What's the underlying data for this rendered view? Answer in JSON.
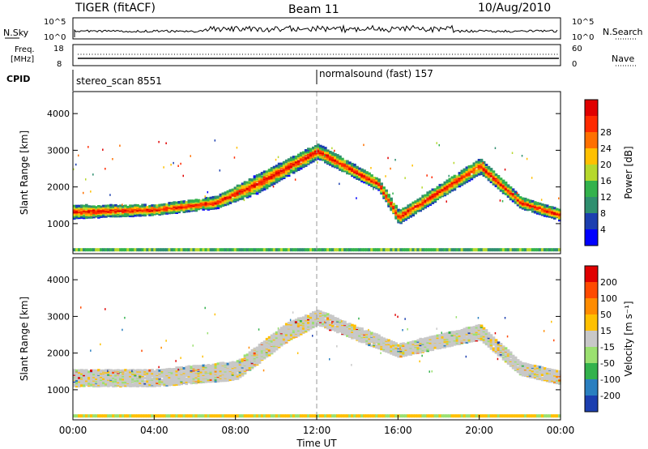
{
  "header": {
    "title": "TIGER (fitACF)",
    "beam": "Beam 11",
    "date": "10/Aug/2010"
  },
  "noise_panel": {
    "left_label": "N.Sky",
    "right_label": "N.Search",
    "left_ticks": [
      "10^5",
      "10^0"
    ],
    "right_ticks": [
      "10^5",
      "10^0"
    ]
  },
  "freq_panel": {
    "left_label_1": "Freq.",
    "left_label_2": "[MHz]",
    "left_ticks": [
      "18",
      "8"
    ],
    "right_label": "Nave",
    "right_ticks": [
      "60",
      "0"
    ]
  },
  "cpid": {
    "label": "CPID",
    "segments": [
      {
        "text": "stereo_scan 8551",
        "start_hour": 0
      },
      {
        "text": "normalsound (fast) 157",
        "start_hour": 12
      }
    ]
  },
  "chart_data": [
    {
      "type": "heatmap",
      "name": "power",
      "ylabel": "Slant Range [km]",
      "y_ticks": [
        1000,
        2000,
        3000,
        4000
      ],
      "ylim": [
        180,
        4600
      ],
      "xlim": [
        0,
        24
      ],
      "colorbar": {
        "label": "Power [dB]",
        "ticks": [
          "4",
          "8",
          "12",
          "16",
          "20",
          "24",
          "28"
        ],
        "colors": [
          "#0000ff",
          "#1c3fb0",
          "#2f8f6f",
          "#33b24c",
          "#b6d82c",
          "#ffc000",
          "#ff7000",
          "#ff2a00",
          "#e00000"
        ]
      },
      "bands": [
        {
          "hour": 0,
          "center_km": 1350,
          "width_km": 350
        },
        {
          "hour": 4,
          "center_km": 1400,
          "width_km": 280
        },
        {
          "hour": 7,
          "center_km": 1600,
          "width_km": 320
        },
        {
          "hour": 9,
          "center_km": 2100,
          "width_km": 500
        },
        {
          "hour": 12,
          "center_km": 3000,
          "width_km": 400
        },
        {
          "hour": 15,
          "center_km": 2100,
          "width_km": 300
        },
        {
          "hour": 16,
          "center_km": 1200,
          "width_km": 350
        },
        {
          "hour": 20,
          "center_km": 2600,
          "width_km": 400
        },
        {
          "hour": 22,
          "center_km": 1600,
          "width_km": 300
        },
        {
          "hour": 24,
          "center_km": 1250,
          "width_km": 300
        }
      ]
    },
    {
      "type": "heatmap",
      "name": "velocity",
      "ylabel": "Slant Range [km]",
      "y_ticks": [
        1000,
        2000,
        3000,
        4000
      ],
      "ylim": [
        180,
        4600
      ],
      "xlim": [
        0,
        24
      ],
      "xlabel": "Time UT",
      "x_ticks": [
        "00:00",
        "04:00",
        "08:00",
        "12:00",
        "16:00",
        "20:00",
        "00:00"
      ],
      "colorbar": {
        "label": "Velocity [m s⁻¹]",
        "ticks": [
          "200",
          "100",
          "50",
          "15",
          "-15",
          "-50",
          "-100",
          "-200"
        ],
        "colors": [
          "#1c3fb0",
          "#2a7fc0",
          "#33b24c",
          "#9be070",
          "#c8c8c8",
          "#ffc000",
          "#ff8c00",
          "#ff4a00",
          "#e00000"
        ]
      },
      "bands": [
        {
          "hour": 0,
          "center_km": 1350,
          "width_km": 450
        },
        {
          "hour": 4,
          "center_km": 1350,
          "width_km": 450
        },
        {
          "hour": 8,
          "center_km": 1550,
          "width_km": 500
        },
        {
          "hour": 10.5,
          "center_km": 2600,
          "width_km": 500
        },
        {
          "hour": 12,
          "center_km": 3000,
          "width_km": 400
        },
        {
          "hour": 16,
          "center_km": 2100,
          "width_km": 350
        },
        {
          "hour": 20,
          "center_km": 2600,
          "width_km": 400
        },
        {
          "hour": 22,
          "center_km": 1600,
          "width_km": 350
        },
        {
          "hour": 24,
          "center_km": 1350,
          "width_km": 350
        }
      ]
    }
  ]
}
